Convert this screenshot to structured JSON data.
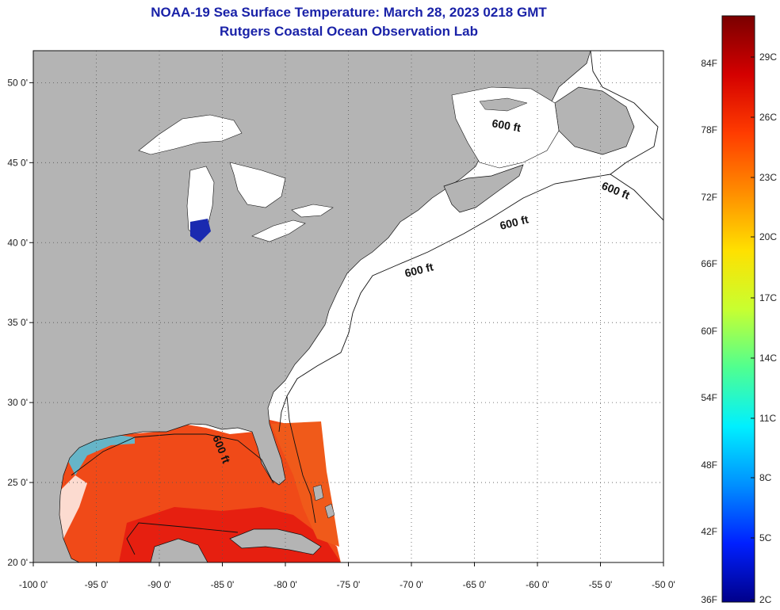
{
  "header": {
    "title": "NOAA-19 Sea Surface Temperature:  March 28, 2023 0218 GMT",
    "subtitle": "Rutgers Coastal Ocean Observation Lab"
  },
  "map": {
    "lon_range": [
      -100,
      -50
    ],
    "lat_range": [
      20,
      52
    ],
    "lat_ticks": [
      "20 0'",
      "25 0'",
      "30 0'",
      "35 0'",
      "40 0'",
      "45 0'",
      "50 0'"
    ],
    "lon_ticks": [
      "-100 0'",
      "-95 0'",
      "-90 0'",
      "-85 0'",
      "-80 0'",
      "-75 0'",
      "-70 0'",
      "-65 0'",
      "-60 0'",
      "-55 0'",
      "-50 0'"
    ],
    "gridlines": true,
    "land_color": "#b4b4b4",
    "no_data_color": "#ffffff",
    "contour_labels": [
      "600 ft",
      "600 ft",
      "600 ft",
      "600 ft",
      "600 ft"
    ]
  },
  "colorbar": {
    "fahrenheit_labels": [
      "84F",
      "78F",
      "72F",
      "66F",
      "60F",
      "54F",
      "48F",
      "42F",
      "36F"
    ],
    "celsius_labels": [
      "29C",
      "26C",
      "23C",
      "20C",
      "17C",
      "14C",
      "11C",
      "8C",
      "5C",
      "2C"
    ],
    "colors": [
      "#7a0000",
      "#d40000",
      "#ff3c00",
      "#ff8c00",
      "#ffe000",
      "#c8ff30",
      "#50ff90",
      "#00f0ff",
      "#0090ff",
      "#0020ff",
      "#00008a"
    ]
  }
}
